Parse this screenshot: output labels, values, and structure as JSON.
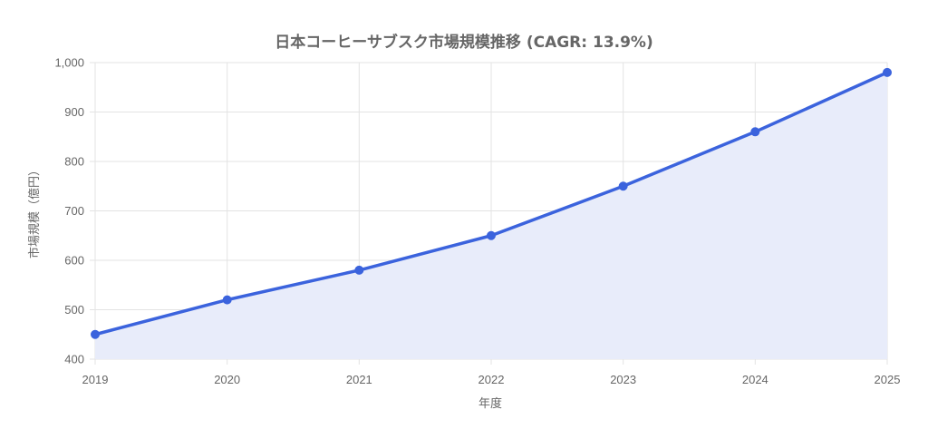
{
  "chart_data": {
    "type": "line",
    "title": "日本コーヒーサブスク市場規模推移 (CAGR: 13.9%)",
    "xlabel": "年度",
    "ylabel": "市場規模（億円）",
    "x": [
      "2019",
      "2020",
      "2021",
      "2022",
      "2023",
      "2024",
      "2025"
    ],
    "series": [
      {
        "values": [
          450,
          520,
          580,
          650,
          750,
          860,
          980
        ]
      }
    ],
    "ylim": [
      400,
      1000
    ],
    "yticks": [
      "400",
      "500",
      "600",
      "700",
      "800",
      "900",
      "1,000"
    ],
    "grid": true,
    "fill": true,
    "colors": {
      "line": "#3b63dd",
      "fill": "#e8ecfa",
      "grid": "#e3e3e3",
      "text": "#666666"
    }
  }
}
